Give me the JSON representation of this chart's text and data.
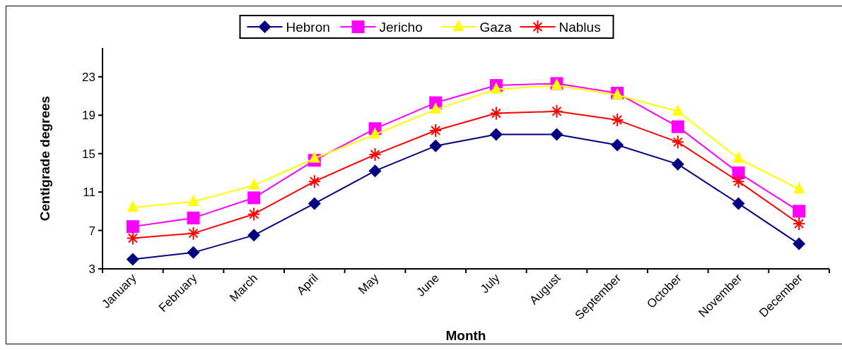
{
  "chart_data": {
    "type": "line",
    "xlabel": "Month",
    "ylabel": "Centigrade degrees",
    "categories": [
      "January",
      "February",
      "March",
      "April",
      "May",
      "June",
      "July",
      "August",
      "September",
      "October",
      "November",
      "December"
    ],
    "series": [
      {
        "name": "Hebron",
        "color": "#000080",
        "marker": "diamond",
        "values": [
          4.0,
          4.7,
          6.5,
          9.8,
          13.2,
          15.8,
          17.0,
          17.0,
          15.9,
          13.9,
          9.8,
          5.6
        ]
      },
      {
        "name": "Jericho",
        "color": "#ff00ff",
        "marker": "square",
        "values": [
          7.4,
          8.3,
          10.4,
          14.3,
          17.6,
          20.3,
          22.1,
          22.3,
          21.3,
          17.8,
          13.0,
          9.0
        ]
      },
      {
        "name": "Gaza",
        "color": "#ffff00",
        "marker": "triangle",
        "values": [
          9.4,
          10.0,
          11.7,
          14.5,
          17.0,
          19.6,
          21.7,
          22.1,
          21.1,
          19.4,
          14.5,
          11.3
        ]
      },
      {
        "name": "Nablus",
        "color": "#ff0000",
        "marker": "cross",
        "values": [
          6.2,
          6.7,
          8.7,
          12.1,
          14.9,
          17.4,
          19.2,
          19.4,
          18.5,
          16.2,
          12.1,
          7.7
        ]
      }
    ],
    "ylim": [
      3,
      26
    ],
    "yticks": [
      3,
      7,
      11,
      15,
      19,
      23
    ],
    "grid": false,
    "legend": "top",
    "line_style": "solid"
  }
}
